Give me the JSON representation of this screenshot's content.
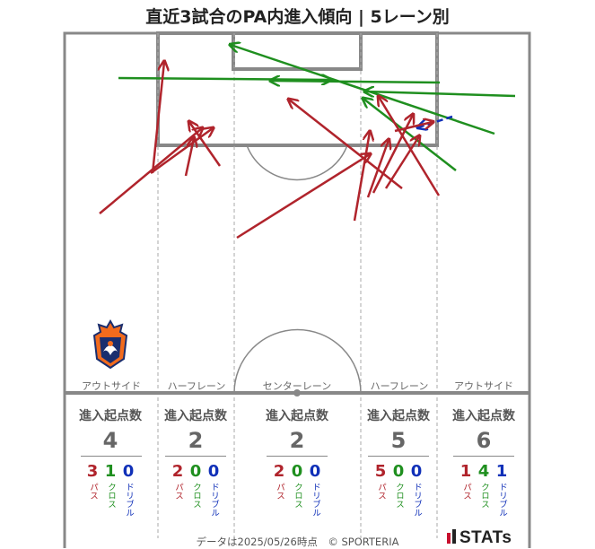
{
  "title": "直近3試合のPA内進入傾向 | 5レーン別",
  "lanes": [
    {
      "name": "アウトサイド",
      "header": "進入起点数",
      "total": "4",
      "pass": "3",
      "cross": "1",
      "dribble": "0"
    },
    {
      "name": "ハーフレーン",
      "header": "進入起点数",
      "total": "2",
      "pass": "2",
      "cross": "0",
      "dribble": "0"
    },
    {
      "name": "センターレーン",
      "header": "進入起点数",
      "total": "2",
      "pass": "2",
      "cross": "0",
      "dribble": "0"
    },
    {
      "name": "ハーフレーン",
      "header": "進入起点数",
      "total": "5",
      "pass": "5",
      "cross": "0",
      "dribble": "0"
    },
    {
      "name": "アウトサイド",
      "header": "進入起点数",
      "total": "6",
      "pass": "1",
      "cross": "4",
      "dribble": "1"
    }
  ],
  "labels": {
    "pass": "パス",
    "cross": "クロス",
    "dribble": "ドリブル"
  },
  "footer": "データは2025/05/26時点　© SPORTERIA",
  "brand": "STATs",
  "colors": {
    "pass": "#b0242c",
    "cross": "#1f8f1f",
    "dribble": "#1030b8",
    "pitch_line": "#888888"
  },
  "crest_icon": "team-crest-icon"
}
